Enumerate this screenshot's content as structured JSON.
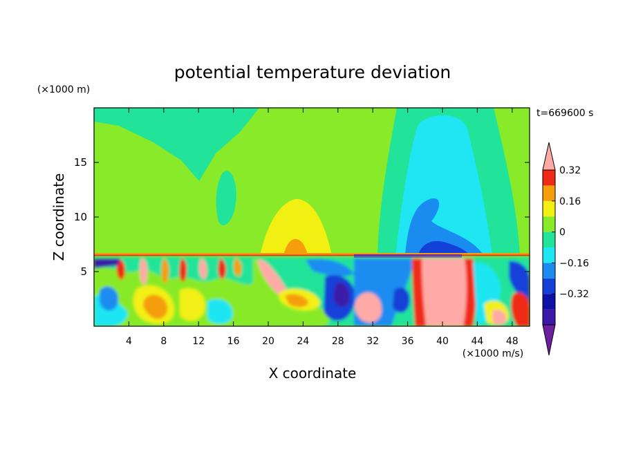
{
  "chart_data": {
    "type": "heatmap",
    "title": "potential temperature deviation",
    "xlabel": "X coordinate",
    "ylabel": "Z coordinate",
    "x_unit": "(×1000 m/s)",
    "y_unit": "(×1000 m)",
    "time_label": "t=669600 s",
    "xlim": [
      0,
      50
    ],
    "ylim": [
      0,
      20
    ],
    "x_ticks": [
      4,
      8,
      12,
      16,
      20,
      24,
      28,
      32,
      36,
      40,
      44,
      48
    ],
    "y_ticks": [
      5,
      10,
      15
    ],
    "colorbar": {
      "levels": [
        -0.48,
        -0.4,
        -0.32,
        -0.24,
        -0.16,
        -0.08,
        0,
        0.08,
        0.16,
        0.24,
        0.32,
        0.4
      ],
      "colors": [
        "#6e1fa0",
        "#3a1aa6",
        "#0d11a8",
        "#1240d8",
        "#1a8cf0",
        "#1fe6f2",
        "#22e39a",
        "#88ea28",
        "#f2f012",
        "#f59d0b",
        "#ef2a16",
        "#ffaaa6"
      ],
      "tick_values": [
        -0.32,
        -0.16,
        0,
        0.16,
        0.32
      ],
      "tick_labels": [
        "−0.32",
        "−0.16",
        "0",
        "0.16",
        "0.32"
      ]
    }
  }
}
